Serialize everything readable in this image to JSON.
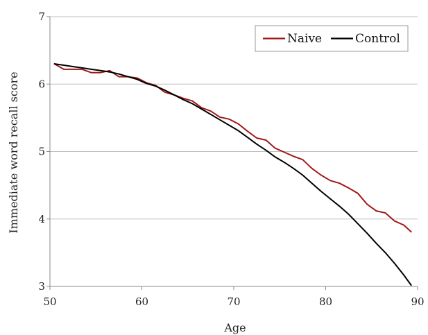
{
  "chart_data": {
    "type": "line",
    "title": "",
    "xlabel": "Age",
    "ylabel": "Immediate word recall score",
    "xlim": [
      50,
      90
    ],
    "ylim": [
      3,
      7
    ],
    "xticks": [
      50,
      60,
      70,
      80,
      90
    ],
    "yticks": [
      3,
      4,
      5,
      6,
      7
    ],
    "xtick_labels": [
      "50",
      "60",
      "70",
      "80",
      "90"
    ],
    "ytick_labels": [
      "3",
      "4",
      "5",
      "6",
      "7"
    ],
    "grid": "horizontal",
    "legend_position": "top-right",
    "series": [
      {
        "name": "Naive",
        "color": "#a01818",
        "x": [
          50.5,
          51.5,
          52.5,
          53.5,
          54.5,
          55.5,
          56.5,
          57.5,
          58.5,
          59.5,
          60.5,
          61.5,
          62.5,
          63.5,
          64.5,
          65.5,
          66.5,
          67.5,
          68.5,
          69.5,
          70.5,
          71.5,
          72.5,
          73.5,
          74.5,
          75.5,
          76.5,
          77.5,
          78.5,
          79.5,
          80.5,
          81.5,
          82.5,
          83.5,
          84.5,
          85.5,
          86.5,
          87.5,
          88.5,
          89.3
        ],
        "y": [
          6.3,
          6.22,
          6.22,
          6.22,
          6.17,
          6.17,
          6.2,
          6.11,
          6.11,
          6.09,
          6.02,
          5.98,
          5.88,
          5.84,
          5.79,
          5.75,
          5.65,
          5.6,
          5.51,
          5.48,
          5.41,
          5.3,
          5.2,
          5.17,
          5.05,
          4.99,
          4.93,
          4.88,
          4.75,
          4.65,
          4.57,
          4.53,
          4.46,
          4.38,
          4.22,
          4.12,
          4.09,
          3.97,
          3.91,
          3.81
        ]
      },
      {
        "name": "Control",
        "color": "#000000",
        "x": [
          50.5,
          51.5,
          52.5,
          53.5,
          54.5,
          55.5,
          56.5,
          57.5,
          58.5,
          59.5,
          60.5,
          61.5,
          62.5,
          63.5,
          64.5,
          65.5,
          66.5,
          67.5,
          68.5,
          69.5,
          70.5,
          71.5,
          72.5,
          73.5,
          74.5,
          75.5,
          76.5,
          77.5,
          78.5,
          79.5,
          80.5,
          81.5,
          82.5,
          83.5,
          84.5,
          85.5,
          86.5,
          87.5,
          88.5,
          89.3
        ],
        "y": [
          6.3,
          6.28,
          6.26,
          6.24,
          6.22,
          6.2,
          6.18,
          6.15,
          6.11,
          6.07,
          6.01,
          5.97,
          5.91,
          5.84,
          5.77,
          5.71,
          5.63,
          5.55,
          5.47,
          5.39,
          5.31,
          5.21,
          5.11,
          5.02,
          4.92,
          4.84,
          4.75,
          4.65,
          4.53,
          4.41,
          4.3,
          4.19,
          4.07,
          3.93,
          3.79,
          3.64,
          3.5,
          3.34,
          3.17,
          3.02
        ]
      }
    ]
  }
}
